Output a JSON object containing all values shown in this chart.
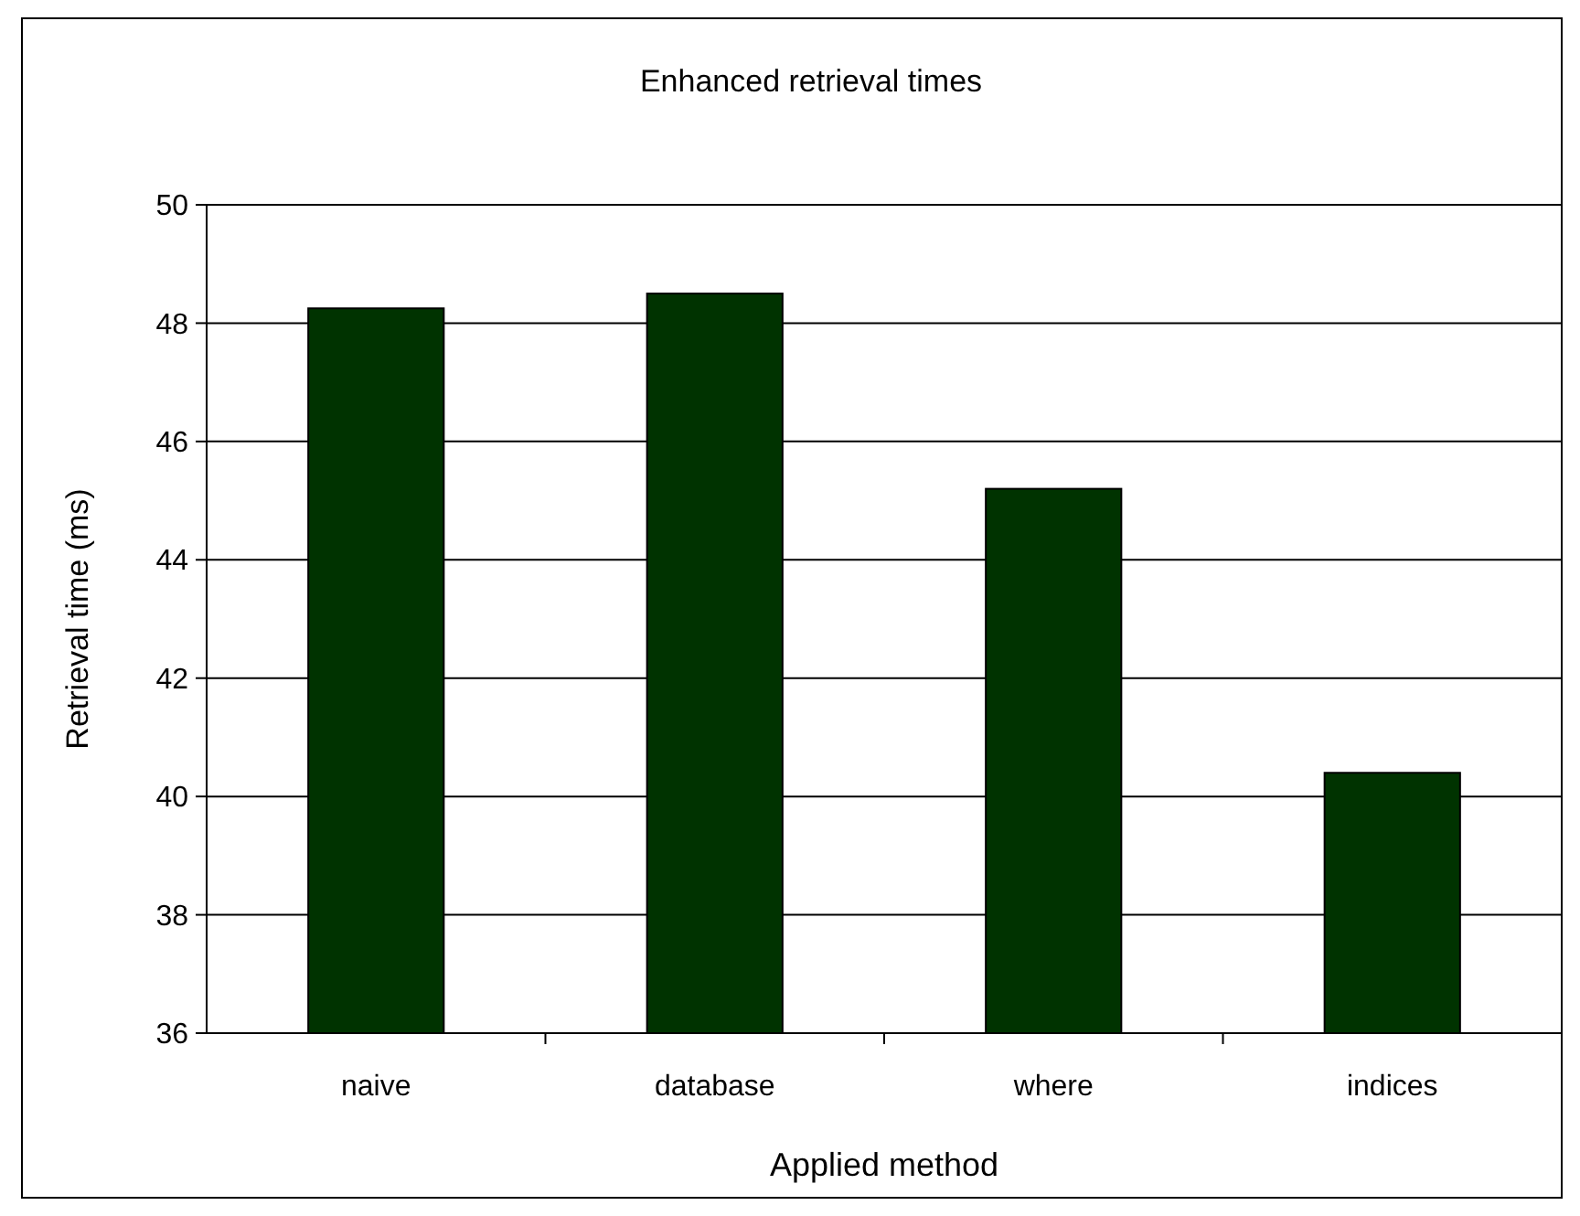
{
  "chart_data": {
    "type": "bar",
    "title": "Enhanced retrieval times",
    "xlabel": "Applied method",
    "ylabel": "Retrieval time (ms)",
    "categories": [
      "naive",
      "database",
      "where",
      "indices"
    ],
    "values": [
      48.25,
      48.5,
      45.2,
      40.4
    ],
    "color": "#003300",
    "ylim": [
      36,
      50
    ],
    "yticks": [
      36,
      38,
      40,
      42,
      44,
      46,
      48,
      50
    ],
    "grid": "y"
  }
}
